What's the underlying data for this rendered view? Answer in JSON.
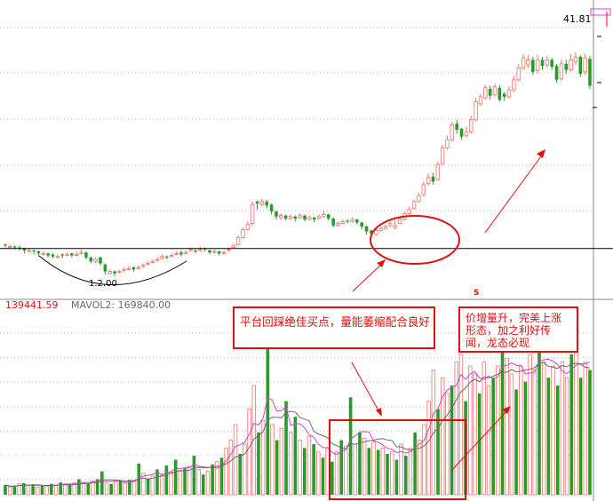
{
  "price_panel": {
    "last_price_label": "41.81",
    "low_price_label": "1.2.00",
    "marker": "S"
  },
  "volume_panel": {
    "vol_value_label": "139441.59",
    "mavol2_label": "MAVOL2: 169840.00"
  },
  "annotations": {
    "platform_text": "平台回踩绝佳买点，量能萎缩配合良好",
    "surge_text": "价增量升，完美上涨形态，加之利好传闻，龙态必现"
  },
  "colors": {
    "up": "#f07070",
    "down": "#2a9a2a",
    "annotation": "#e01010",
    "grid": "#b0b0b0",
    "ma1": "#cc44cc",
    "ma2": "#6a6a6a"
  },
  "chart_data": [
    {
      "type": "candlestick",
      "name": "price",
      "last_price": 41.81,
      "candles": [
        [
          "d",
          20.4,
          20.6,
          20.2,
          20.5
        ],
        [
          "u",
          20.3,
          20.5,
          20.1,
          20.2
        ],
        [
          "d",
          20.2,
          20.4,
          20.0,
          20.3
        ],
        [
          "d",
          20.1,
          20.4,
          19.9,
          20.2
        ],
        [
          "d",
          19.9,
          20.2,
          19.6,
          20.1
        ],
        [
          "u",
          19.9,
          20.1,
          19.7,
          19.8
        ],
        [
          "d",
          19.8,
          20.0,
          19.5,
          19.9
        ],
        [
          "d",
          19.6,
          19.9,
          19.3,
          19.8
        ],
        [
          "u",
          19.6,
          19.8,
          19.4,
          19.5
        ],
        [
          "d",
          19.4,
          19.7,
          19.2,
          19.6
        ],
        [
          "d",
          19.3,
          19.6,
          19.1,
          19.5
        ],
        [
          "u",
          19.3,
          19.5,
          19.1,
          19.2
        ],
        [
          "d",
          19.4,
          19.6,
          19.1,
          19.5
        ],
        [
          "u",
          19.5,
          19.7,
          19.3,
          19.4
        ],
        [
          "d",
          19.4,
          19.7,
          19.2,
          19.6
        ],
        [
          "u",
          19.5,
          19.8,
          19.3,
          19.4
        ],
        [
          "u",
          19.7,
          20.0,
          19.5,
          19.6
        ],
        [
          "d",
          19.2,
          19.8,
          19.0,
          19.7
        ],
        [
          "d",
          18.8,
          19.3,
          18.6,
          19.2
        ],
        [
          "u",
          19.0,
          19.2,
          18.6,
          18.8
        ],
        [
          "d",
          18.6,
          19.3,
          18.4,
          19.2
        ],
        [
          "d",
          17.8,
          18.6,
          17.5,
          18.5
        ],
        [
          "u",
          17.8,
          18.0,
          17.5,
          17.6
        ],
        [
          "d",
          17.6,
          17.9,
          17.3,
          17.8
        ],
        [
          "u",
          17.8,
          18.0,
          17.6,
          17.7
        ],
        [
          "u",
          18.0,
          18.2,
          17.8,
          17.9
        ],
        [
          "u",
          18.1,
          18.3,
          17.9,
          18.0
        ],
        [
          "d",
          18.0,
          18.3,
          17.8,
          18.2
        ],
        [
          "u",
          18.2,
          18.4,
          18.0,
          18.1
        ],
        [
          "u",
          18.4,
          18.6,
          18.2,
          18.3
        ],
        [
          "u",
          18.6,
          18.8,
          18.4,
          18.5
        ],
        [
          "u",
          18.8,
          19.0,
          18.6,
          18.7
        ],
        [
          "u",
          19.0,
          19.2,
          18.8,
          18.9
        ],
        [
          "u",
          19.3,
          19.5,
          19.0,
          19.1
        ],
        [
          "d",
          19.2,
          19.4,
          19.0,
          19.3
        ],
        [
          "u",
          19.4,
          19.6,
          19.2,
          19.3
        ],
        [
          "u",
          19.6,
          19.8,
          19.4,
          19.5
        ],
        [
          "d",
          19.5,
          19.9,
          19.3,
          19.7
        ],
        [
          "u",
          19.7,
          19.9,
          19.5,
          19.6
        ],
        [
          "u",
          20.0,
          20.2,
          19.8,
          19.9
        ],
        [
          "d",
          19.8,
          20.1,
          19.6,
          19.9
        ],
        [
          "u",
          20.0,
          20.3,
          19.8,
          19.9
        ],
        [
          "d",
          20.0,
          20.2,
          19.8,
          20.1
        ],
        [
          "d",
          19.7,
          20.0,
          19.5,
          19.9
        ],
        [
          "u",
          19.8,
          20.0,
          19.6,
          19.7
        ],
        [
          "d",
          19.6,
          19.9,
          19.4,
          19.8
        ],
        [
          "u",
          19.7,
          19.9,
          19.5,
          19.6
        ],
        [
          "u",
          20.0,
          20.2,
          19.8,
          19.9
        ],
        [
          "u",
          20.4,
          20.6,
          20.1,
          20.2
        ],
        [
          "u",
          21.2,
          21.4,
          20.4,
          20.5
        ],
        [
          "u",
          22.0,
          22.2,
          21.1,
          21.2
        ],
        [
          "u",
          22.5,
          22.8,
          21.9,
          22.0
        ],
        [
          "u",
          24.5,
          24.8,
          22.4,
          22.6
        ],
        [
          "d",
          24.6,
          24.9,
          24.0,
          24.8
        ],
        [
          "u",
          24.8,
          25.1,
          24.3,
          24.5
        ],
        [
          "d",
          24.4,
          25.0,
          24.1,
          24.8
        ],
        [
          "d",
          23.8,
          24.6,
          23.5,
          24.5
        ],
        [
          "d",
          23.3,
          23.9,
          23.0,
          23.8
        ],
        [
          "u",
          23.4,
          23.6,
          23.0,
          23.2
        ],
        [
          "d",
          23.1,
          23.5,
          22.9,
          23.4
        ],
        [
          "u",
          23.3,
          23.5,
          23.0,
          23.1
        ],
        [
          "d",
          23.1,
          23.4,
          22.8,
          23.3
        ],
        [
          "u",
          23.4,
          23.6,
          23.1,
          23.2
        ],
        [
          "d",
          23.0,
          23.5,
          22.8,
          23.4
        ],
        [
          "u",
          23.2,
          23.4,
          22.9,
          23.0
        ],
        [
          "d",
          23.0,
          23.3,
          22.7,
          23.2
        ],
        [
          "u",
          23.3,
          23.5,
          23.0,
          23.1
        ],
        [
          "u",
          23.5,
          23.8,
          23.2,
          23.3
        ],
        [
          "d",
          23.1,
          23.6,
          22.9,
          23.5
        ],
        [
          "d",
          22.4,
          23.2,
          22.2,
          23.1
        ],
        [
          "u",
          22.6,
          22.8,
          22.3,
          22.4
        ],
        [
          "u",
          22.8,
          23.0,
          22.5,
          22.6
        ],
        [
          "d",
          22.8,
          23.0,
          22.6,
          22.9
        ],
        [
          "u",
          23.0,
          23.2,
          22.7,
          22.8
        ],
        [
          "d",
          22.7,
          23.1,
          22.5,
          23.0
        ],
        [
          "d",
          22.3,
          22.8,
          22.0,
          22.7
        ],
        [
          "d",
          21.8,
          22.4,
          21.5,
          22.3
        ],
        [
          "d",
          21.6,
          22.0,
          21.3,
          21.9
        ],
        [
          "u",
          21.9,
          22.1,
          21.4,
          21.5
        ],
        [
          "u",
          22.1,
          22.3,
          21.8,
          21.9
        ],
        [
          "u",
          22.3,
          22.5,
          22.0,
          22.1
        ],
        [
          "u",
          22.6,
          22.8,
          22.2,
          22.4
        ],
        [
          "u",
          22.4,
          22.9,
          22.0,
          22.2
        ],
        [
          "u",
          23.0,
          23.2,
          22.5,
          22.6
        ],
        [
          "u",
          23.6,
          23.8,
          22.9,
          23.0
        ],
        [
          "u",
          24.0,
          24.3,
          23.5,
          23.6
        ],
        [
          "u",
          24.8,
          25.0,
          24.0,
          24.1
        ],
        [
          "u",
          25.4,
          25.7,
          24.7,
          24.8
        ],
        [
          "u",
          26.5,
          26.8,
          25.3,
          25.5
        ],
        [
          "u",
          27.2,
          27.6,
          26.4,
          26.6
        ],
        [
          "d",
          26.8,
          27.7,
          26.5,
          27.3
        ],
        [
          "u",
          28.5,
          28.8,
          26.9,
          27.0
        ],
        [
          "u",
          30.2,
          30.5,
          28.4,
          28.6
        ],
        [
          "u",
          31.0,
          31.4,
          30.0,
          30.2
        ],
        [
          "u",
          32.5,
          32.8,
          30.8,
          31.0
        ],
        [
          "d",
          32.0,
          33.0,
          31.6,
          32.6
        ],
        [
          "d",
          31.3,
          32.2,
          31.0,
          32.1
        ],
        [
          "u",
          31.8,
          32.3,
          31.2,
          31.4
        ],
        [
          "u",
          33.0,
          33.4,
          31.6,
          31.8
        ],
        [
          "u",
          34.8,
          35.2,
          32.8,
          33.0
        ],
        [
          "u",
          35.3,
          35.6,
          34.4,
          34.6
        ],
        [
          "u",
          36.2,
          36.5,
          35.0,
          35.2
        ],
        [
          "d",
          35.4,
          36.4,
          35.0,
          36.1
        ],
        [
          "u",
          36.3,
          36.6,
          35.3,
          35.5
        ],
        [
          "d",
          35.0,
          36.5,
          34.8,
          36.2
        ],
        [
          "d",
          35.3,
          35.8,
          34.9,
          35.6
        ],
        [
          "u",
          36.0,
          36.3,
          35.1,
          35.3
        ],
        [
          "u",
          37.0,
          37.4,
          35.8,
          36.0
        ],
        [
          "u",
          38.2,
          38.6,
          36.8,
          37.0
        ],
        [
          "u",
          39.2,
          39.6,
          38.0,
          38.2
        ],
        [
          "u",
          39.0,
          39.5,
          38.2,
          38.5
        ],
        [
          "d",
          37.8,
          39.3,
          37.5,
          39.0
        ],
        [
          "u",
          39.0,
          39.5,
          37.6,
          37.9
        ],
        [
          "d",
          38.4,
          39.3,
          38.0,
          39.0
        ],
        [
          "u",
          39.0,
          39.4,
          38.2,
          38.5
        ],
        [
          "d",
          38.3,
          39.2,
          38.0,
          39.0
        ],
        [
          "d",
          37.0,
          38.6,
          36.7,
          38.4
        ],
        [
          "u",
          38.6,
          39.0,
          36.9,
          37.1
        ],
        [
          "d",
          38.0,
          39.0,
          37.6,
          38.6
        ],
        [
          "u",
          39.0,
          39.6,
          37.8,
          38.0
        ],
        [
          "u",
          39.3,
          39.8,
          38.5,
          38.8
        ],
        [
          "d",
          37.6,
          39.5,
          37.3,
          39.3
        ],
        [
          "u",
          39.2,
          39.6,
          37.5,
          37.8
        ],
        [
          "d",
          36.4,
          39.4,
          36.1,
          39.1
        ]
      ],
      "support_line": 20.1
    },
    {
      "type": "bar",
      "name": "volume",
      "vol": 139441.59,
      "mavol2": 169840.0,
      "values": [
        [
          "d",
          2.5
        ],
        [
          "u",
          2.0
        ],
        [
          "d",
          2.2
        ],
        [
          "u",
          2.8
        ],
        [
          "d",
          3.0
        ],
        [
          "u",
          2.4
        ],
        [
          "d",
          2.6
        ],
        [
          "u",
          2.0
        ],
        [
          "d",
          2.3
        ],
        [
          "u",
          2.2
        ],
        [
          "d",
          2.8
        ],
        [
          "u",
          2.5
        ],
        [
          "d",
          3.2
        ],
        [
          "u",
          2.8
        ],
        [
          "d",
          2.6
        ],
        [
          "u",
          3.0
        ],
        [
          "d",
          4.0
        ],
        [
          "u",
          3.2
        ],
        [
          "d",
          2.8
        ],
        [
          "u",
          3.5
        ],
        [
          "d",
          4.0
        ],
        [
          "d",
          6.0
        ],
        [
          "u",
          3.0
        ],
        [
          "d",
          2.8
        ],
        [
          "u",
          3.2
        ],
        [
          "d",
          3.5
        ],
        [
          "u",
          3.0
        ],
        [
          "d",
          3.8
        ],
        [
          "u",
          3.6
        ],
        [
          "d",
          8.0
        ],
        [
          "u",
          5.5
        ],
        [
          "d",
          4.2
        ],
        [
          "u",
          4.8
        ],
        [
          "d",
          6.5
        ],
        [
          "u",
          5.0
        ],
        [
          "d",
          7.5
        ],
        [
          "u",
          5.8
        ],
        [
          "d",
          9.0
        ],
        [
          "u",
          6.0
        ],
        [
          "d",
          6.8
        ],
        [
          "u",
          7.2
        ],
        [
          "d",
          10.0
        ],
        [
          "u",
          6.5
        ],
        [
          "d",
          5.2
        ],
        [
          "u",
          6.0
        ],
        [
          "d",
          7.8
        ],
        [
          "u",
          8.5
        ],
        [
          "d",
          9.5
        ],
        [
          "u",
          12.0
        ],
        [
          "u",
          14.0
        ],
        [
          "u",
          18.0
        ],
        [
          "d",
          10.5
        ],
        [
          "u",
          13.0
        ],
        [
          "u",
          22.0
        ],
        [
          "u",
          28.0
        ],
        [
          "d",
          16.0
        ],
        [
          "u",
          19.0
        ],
        [
          "d",
          40.0
        ],
        [
          "u",
          18.0
        ],
        [
          "d",
          14.0
        ],
        [
          "u",
          17.0
        ],
        [
          "d",
          24.0
        ],
        [
          "u",
          16.0
        ],
        [
          "d",
          20.0
        ],
        [
          "u",
          14.0
        ],
        [
          "d",
          12.0
        ],
        [
          "u",
          15.0
        ],
        [
          "d",
          13.0
        ],
        [
          "u",
          11.0
        ],
        [
          "d",
          9.5
        ],
        [
          "u",
          12.0
        ],
        [
          "d",
          8.5
        ],
        [
          "u",
          11.0
        ],
        [
          "d",
          14.0
        ],
        [
          "u",
          12.5
        ],
        [
          "d",
          25.0
        ],
        [
          "u",
          13.0
        ],
        [
          "d",
          16.0
        ],
        [
          "u",
          14.5
        ],
        [
          "d",
          12.0
        ],
        [
          "u",
          13.5
        ],
        [
          "d",
          11.5
        ],
        [
          "u",
          12.0
        ],
        [
          "d",
          10.5
        ],
        [
          "u",
          11.0
        ],
        [
          "d",
          9.0
        ],
        [
          "u",
          13.0
        ],
        [
          "d",
          10.0
        ],
        [
          "u",
          12.0
        ],
        [
          "d",
          16.0
        ],
        [
          "u",
          14.0
        ],
        [
          "u",
          18.0
        ],
        [
          "u",
          24.0
        ],
        [
          "u",
          32.0
        ],
        [
          "d",
          22.0
        ],
        [
          "u",
          30.0
        ],
        [
          "u",
          26.0
        ],
        [
          "d",
          28.0
        ],
        [
          "u",
          34.0
        ],
        [
          "u",
          36.0
        ],
        [
          "d",
          24.0
        ],
        [
          "u",
          33.0
        ],
        [
          "u",
          31.0
        ],
        [
          "d",
          26.0
        ],
        [
          "u",
          34.0
        ],
        [
          "u",
          28.0
        ],
        [
          "d",
          30.0
        ],
        [
          "u",
          33.0
        ],
        [
          "d",
          40.0
        ],
        [
          "u",
          35.0
        ],
        [
          "u",
          31.0
        ],
        [
          "d",
          27.0
        ],
        [
          "u",
          33.0
        ],
        [
          "d",
          29.0
        ],
        [
          "u",
          36.0
        ],
        [
          "u",
          32.0
        ],
        [
          "d",
          42.0
        ],
        [
          "u",
          34.0
        ],
        [
          "d",
          30.0
        ],
        [
          "u",
          33.0
        ],
        [
          "d",
          28.0
        ],
        [
          "u",
          34.0
        ],
        [
          "u",
          30.0
        ],
        [
          "d",
          36.0
        ],
        [
          "u",
          38.0
        ],
        [
          "d",
          30.0
        ],
        [
          "u",
          34.0
        ],
        [
          "d",
          32.0
        ]
      ]
    }
  ]
}
